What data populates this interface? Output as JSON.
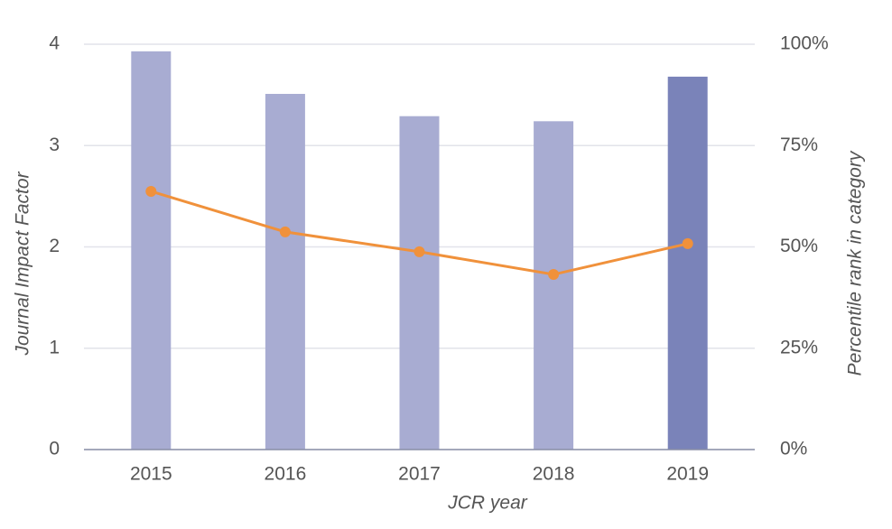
{
  "chart_data": {
    "type": "combo",
    "x_label": "JCR year",
    "y_label": "Journal Impact Factor",
    "y2_label": "Percentile rank in category",
    "categories": [
      "2015",
      "2016",
      "2017",
      "2018",
      "2019"
    ],
    "series": [
      {
        "type": "bar",
        "values": [
          3.93,
          3.51,
          3.29,
          3.24,
          3.68
        ],
        "colors": [
          "#a8acd2",
          "#a8acd2",
          "#a8acd2",
          "#a8acd2",
          "#7a83b9"
        ]
      },
      {
        "type": "line",
        "axis": "y2",
        "values": [
          63.7,
          53.7,
          48.8,
          43.2,
          50.8
        ],
        "color": "#f0913b"
      }
    ],
    "ylim": [
      0,
      4
    ],
    "yticks": [
      0,
      1,
      2,
      3,
      4
    ],
    "y2lim": [
      0,
      100
    ],
    "y2ticks": [
      {
        "value": 0,
        "label": "0%"
      },
      {
        "value": 25,
        "label": "25%"
      },
      {
        "value": 50,
        "label": "50%"
      },
      {
        "value": 75,
        "label": "75%"
      },
      {
        "value": 100,
        "label": "100%"
      }
    ],
    "grid": true
  }
}
